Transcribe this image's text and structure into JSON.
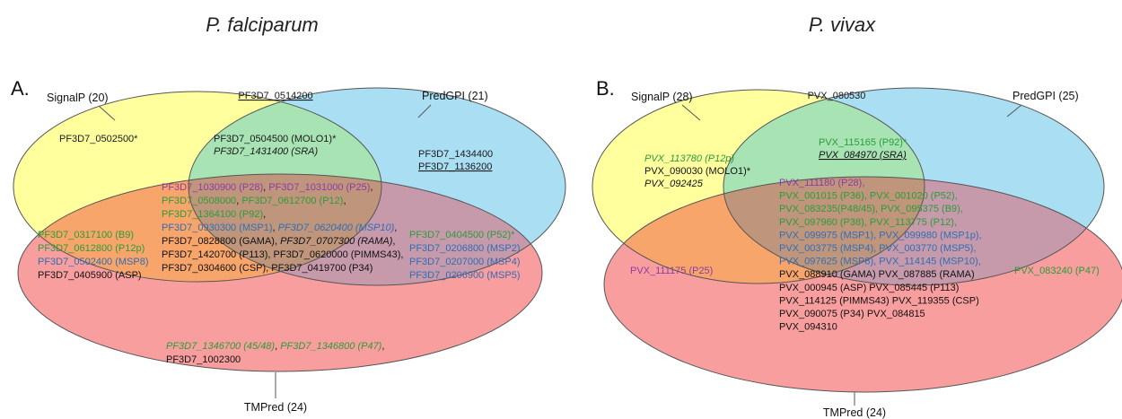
{
  "titles": {
    "left": "P. falciparum",
    "right": "P. vivax"
  },
  "colors": {
    "signalp": "#ffff9e",
    "predgpi": "#a9def3",
    "tmpred": "#f99e9e",
    "signalp_predgpi": "#a8e3b4",
    "signalp_tmpred": "#f7a56a",
    "predgpi_tmpred": "#c69aab",
    "all_three": "#bf967c",
    "purple": "#8e3aa8",
    "green": "#2a9c3a",
    "blue": "#2f6db5",
    "black": "#111111"
  },
  "panelA": {
    "letter": "A.",
    "signalp_label": "SignalP (20)",
    "predgpi_label": "PredGPI (21)",
    "tmpred_label": "TMPred (24)",
    "outside_top": "PF3D7_0514200",
    "signalp_only": [
      "PF3D7_0502500*"
    ],
    "predgpi_only": [
      "PF3D7_1434400",
      "PF3D7_1136200"
    ],
    "signalp_predgpi": [
      "PF3D7_0504500 (MOLO1)*",
      "PF3D7_1431400 (SRA)"
    ],
    "signalp_tmpred": [
      "PF3D7_0317100 (B9)",
      "PF3D7_0612800 (P12p)",
      "PF3D7_0502400 (MSP8)",
      "PF3D7_0405900 (ASP)"
    ],
    "predgpi_tmpred": [
      "PF3D7_0404500 (P52)*",
      "PF3D7_0206800 (MSP2)",
      "PF3D7_0207000 (MSP4)",
      "PF3D7_0206900 (MSP5)"
    ],
    "all_three": [
      [
        {
          "text": "PF3D7_1030900 (P28)",
          "color": "purple"
        },
        {
          "text": ", ",
          "color": "black"
        },
        {
          "text": "PF3D7_1031000 (P25)",
          "color": "purple"
        },
        {
          "text": ",",
          "color": "black"
        }
      ],
      [
        {
          "text": "PF3D7_0508000",
          "color": "green"
        },
        {
          "text": ", ",
          "color": "black"
        },
        {
          "text": "PF3D7_0612700 (P12)",
          "color": "green"
        },
        {
          "text": ",",
          "color": "black"
        }
      ],
      [
        {
          "text": "PF3D7_1364100 (P92)",
          "color": "green"
        },
        {
          "text": ",",
          "color": "black"
        }
      ],
      [
        {
          "text": "PF3D7_0930300 (MSP1)",
          "color": "blue"
        },
        {
          "text": ", ",
          "color": "black"
        },
        {
          "text": "PF3D7_0620400 (MSP10)",
          "color": "blue",
          "italic": true
        },
        {
          "text": ",",
          "color": "black"
        }
      ],
      [
        {
          "text": "PF3D7_0828800 (GAMA), ",
          "color": "black"
        },
        {
          "text": "PF3D7_0707300 (RAMA)",
          "color": "black",
          "italic": true
        },
        {
          "text": ",",
          "color": "black"
        }
      ],
      [
        {
          "text": "PF3D7_1420700 (P113), PF3D7_0620000 (PIMMS43),",
          "color": "black"
        }
      ],
      [
        {
          "text": "PF3D7_0304600 (CSP), PF3D7_0419700 (P34)",
          "color": "black"
        }
      ]
    ],
    "tmpred_only": [
      [
        {
          "text": "PF3D7_1346700 (45/48)",
          "color": "green",
          "italic": true
        },
        {
          "text": ", ",
          "color": "black"
        },
        {
          "text": "PF3D7_1346800 (P47)",
          "color": "green",
          "italic": true
        },
        {
          "text": ",",
          "color": "black"
        }
      ],
      [
        {
          "text": "PF3D7_1002300",
          "color": "black"
        }
      ]
    ]
  },
  "panelB": {
    "letter": "B.",
    "signalp_label": "SignalP (28)",
    "predgpi_label": "PredGPI (25)",
    "tmpred_label": "TMPred (24)",
    "outside_top": "PVX_080530",
    "signalp_only": [
      "PVX_113780 (P12p)",
      "PVX_090030 (MOLO1)*",
      "PVX_092425"
    ],
    "signalp_predgpi": [
      "PVX_115165 (P92)*",
      "PVX_084970 (SRA)"
    ],
    "signalp_tmpred": [
      "PVX_111175 (P25)"
    ],
    "predgpi_tmpred": [
      "PVX_083240 (P47)"
    ],
    "all_three": [
      [
        {
          "text": "PVX_111180 (P28),",
          "color": "purple"
        }
      ],
      [
        {
          "text": "PVX_001015 (P36), PVX_001020 (P52),",
          "color": "green"
        }
      ],
      [
        {
          "text": "PVX_083235(P48/45), PVX_095375 (B9),",
          "color": "green"
        }
      ],
      [
        {
          "text": "PVX_097960 (P38), PVX_113775 (P12),",
          "color": "green"
        }
      ],
      [
        {
          "text": "PVX_099975 (MSP1), PVX_099980 (MSP1p),",
          "color": "blue"
        }
      ],
      [
        {
          "text": "PVX_003775 (MSP4), PVX_003770 (MSP5),",
          "color": "blue"
        }
      ],
      [
        {
          "text": "PVX_097625 (MSP8), PVX_114145 (MSP10),",
          "color": "blue"
        }
      ],
      [
        {
          "text": "PVX_088910 (GAMA) PVX_087885 (RAMA)",
          "color": "black"
        }
      ],
      [
        {
          "text": "PVX_000945 (ASP) PVX_085445 (P113)",
          "color": "black"
        }
      ],
      [
        {
          "text": "PVX_114125 (PIMMS43) PVX_119355 (CSP)",
          "color": "black"
        }
      ],
      [
        {
          "text": "PVX_090075 (P34) PVX_084815",
          "color": "black"
        }
      ],
      [
        {
          "text": "PVX_094310",
          "color": "black"
        }
      ]
    ]
  }
}
